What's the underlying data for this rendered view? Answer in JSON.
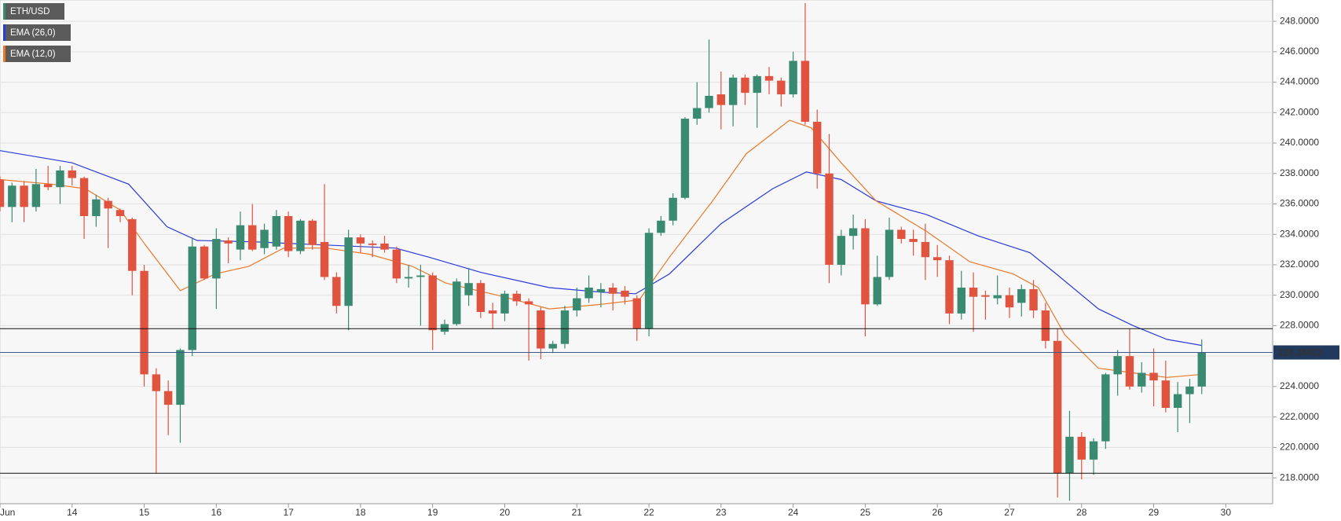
{
  "chart_data": {
    "type": "candlestick",
    "xlim": [
      0,
      105.9
    ],
    "xticks": [
      {
        "value": 0,
        "label": "Jun"
      },
      {
        "value": 6,
        "label": "14"
      },
      {
        "value": 12,
        "label": "15"
      },
      {
        "value": 18,
        "label": "16"
      },
      {
        "value": 24,
        "label": "17"
      },
      {
        "value": 30,
        "label": "18"
      },
      {
        "value": 36,
        "label": "19"
      },
      {
        "value": 42,
        "label": "20"
      },
      {
        "value": 48,
        "label": "21"
      },
      {
        "value": 54,
        "label": "22"
      },
      {
        "value": 60,
        "label": "23"
      },
      {
        "value": 66,
        "label": "24"
      },
      {
        "value": 72,
        "label": "25"
      },
      {
        "value": 78,
        "label": "26"
      },
      {
        "value": 84,
        "label": "27"
      },
      {
        "value": 90,
        "label": "28"
      },
      {
        "value": 96,
        "label": "29"
      },
      {
        "value": 102,
        "label": "30"
      }
    ],
    "ylim": [
      216.3,
      249.4
    ],
    "yticks": [
      {
        "value": 218,
        "label": "218.0000"
      },
      {
        "value": 220,
        "label": "220.0000"
      },
      {
        "value": 222,
        "label": "222.0000"
      },
      {
        "value": 224,
        "label": "224.0000"
      },
      {
        "value": 226,
        "label": "226.0000"
      },
      {
        "value": 228,
        "label": "228.0000"
      },
      {
        "value": 230,
        "label": "230.0000"
      },
      {
        "value": 232,
        "label": "232.0000"
      },
      {
        "value": 234,
        "label": "234.0000"
      },
      {
        "value": 236,
        "label": "236.0000"
      },
      {
        "value": 238,
        "label": "238.0000"
      },
      {
        "value": 240,
        "label": "240.0000"
      },
      {
        "value": 242,
        "label": "242.0000"
      },
      {
        "value": 244,
        "label": "244.0000"
      },
      {
        "value": 246,
        "label": "246.0000"
      },
      {
        "value": 248,
        "label": "248.0000"
      }
    ],
    "grid": true,
    "hlines": [
      227.8,
      218.3
    ],
    "last_price": 226.24022,
    "candles": {
      "name": "ETH/USD",
      "up_color": "#3a8a72",
      "down_color": "#e0533f",
      "x": [
        0,
        1,
        2,
        3,
        4,
        5,
        6,
        7,
        8,
        9,
        10,
        11,
        12,
        13,
        14,
        15,
        16,
        17,
        18,
        19,
        20,
        21,
        22,
        23,
        24,
        25,
        26,
        27,
        28,
        29,
        30,
        31,
        32,
        33,
        34,
        35,
        36,
        37,
        38,
        39,
        40,
        41,
        42,
        43,
        44,
        45,
        46,
        47,
        48,
        49,
        50,
        51,
        52,
        53,
        54,
        55,
        56,
        57,
        58,
        59,
        60,
        61,
        62,
        63,
        64,
        65,
        66,
        67,
        68,
        69,
        70,
        71,
        72,
        73,
        74,
        75,
        76,
        77,
        78,
        79,
        80,
        81,
        82,
        83,
        84,
        85,
        86,
        87,
        88,
        89,
        90,
        91,
        92,
        93,
        94,
        95,
        96,
        97,
        98,
        99,
        100
      ],
      "open": [
        237.6,
        235.8,
        237.2,
        235.8,
        237.3,
        237.1,
        238.2,
        237.7,
        235.2,
        236.2,
        235.6,
        235.0,
        231.6,
        224.8,
        223.7,
        222.8,
        226.4,
        233.2,
        231.1,
        233.6,
        233.0,
        234.6,
        233.1,
        233.2,
        235.2,
        232.9,
        234.9,
        233.5,
        231.2,
        229.3,
        233.8,
        233.4,
        233.4,
        233.0,
        231.1,
        231.2,
        231.3,
        227.6,
        228.1,
        230.0,
        230.8,
        229.0,
        228.8,
        230.1,
        229.6,
        229.0,
        226.5,
        226.8,
        229.0,
        229.8,
        230.2,
        230.5,
        230.3,
        229.8,
        227.8,
        234.1,
        234.9,
        236.4,
        241.6,
        242.3,
        243.2,
        242.5,
        244.3,
        243.3,
        244.4,
        244.1,
        243.2,
        245.4,
        241.4,
        238.0,
        232.0,
        233.9,
        234.4,
        229.4,
        231.2,
        234.3,
        233.7,
        233.5,
        232.5,
        232.3,
        228.8,
        230.5,
        230.0,
        229.8,
        230.0,
        229.5,
        230.4,
        229.0,
        227.0,
        218.3,
        220.7,
        219.2,
        220.4,
        224.8,
        226.0,
        224.0,
        224.9,
        224.4,
        222.6,
        223.5,
        224.0
      ],
      "high": [
        237.8,
        237.4,
        237.5,
        238.3,
        238.5,
        238.5,
        238.5,
        237.8,
        236.6,
        236.4,
        235.7,
        235.1,
        232.0,
        225.2,
        224.4,
        226.5,
        233.8,
        233.3,
        234.4,
        233.8,
        235.5,
        236.0,
        234.7,
        235.6,
        235.5,
        235.0,
        235.0,
        237.3,
        231.5,
        234.3,
        234.0,
        233.6,
        233.9,
        233.2,
        232.0,
        232.0,
        231.5,
        228.4,
        231.1,
        231.8,
        231.0,
        229.5,
        230.3,
        230.3,
        229.8,
        229.2,
        227.0,
        229.3,
        230.5,
        231.3,
        230.8,
        230.8,
        230.6,
        230.0,
        234.4,
        235.2,
        236.7,
        241.7,
        244.0,
        246.8,
        244.7,
        244.5,
        244.5,
        244.5,
        245.0,
        244.3,
        246.0,
        249.2,
        242.2,
        240.6,
        234.3,
        235.3,
        235.0,
        232.6,
        235.1,
        234.5,
        234.3,
        234.7,
        233.3,
        232.6,
        231.6,
        231.5,
        230.3,
        231.3,
        230.5,
        230.7,
        231.0,
        229.5,
        227.8,
        222.4,
        221.0,
        220.6,
        224.9,
        226.4,
        227.8,
        225.6,
        226.5,
        225.7,
        224.3,
        224.5,
        227.1
      ],
      "low": [
        235.5,
        234.8,
        234.8,
        235.5,
        236.9,
        236.0,
        237.2,
        233.7,
        234.5,
        233.1,
        234.8,
        230.0,
        224.0,
        218.3,
        220.8,
        220.3,
        226.0,
        231.0,
        229.1,
        232.1,
        232.3,
        232.9,
        232.7,
        233.0,
        232.5,
        232.7,
        233.0,
        231.0,
        228.8,
        227.7,
        232.8,
        232.5,
        232.8,
        230.8,
        230.5,
        228.0,
        226.4,
        227.4,
        228.0,
        229.3,
        228.5,
        227.8,
        228.3,
        229.3,
        225.7,
        225.8,
        226.2,
        226.5,
        228.6,
        229.5,
        229.2,
        229.0,
        229.4,
        227.0,
        227.3,
        233.9,
        234.6,
        236.3,
        241.2,
        242.0,
        240.9,
        241.1,
        242.5,
        241.0,
        243.2,
        242.4,
        243.0,
        241.2,
        237.0,
        230.8,
        231.3,
        233.0,
        227.3,
        229.3,
        231.0,
        233.4,
        232.6,
        231.0,
        231.2,
        228.1,
        228.4,
        227.6,
        228.4,
        229.4,
        228.5,
        228.6,
        228.5,
        226.5,
        216.7,
        216.5,
        217.9,
        218.2,
        219.9,
        223.4,
        223.8,
        223.6,
        222.7,
        222.3,
        221.0,
        221.6,
        223.5
      ],
      "close": [
        235.8,
        237.2,
        235.8,
        237.3,
        237.1,
        238.2,
        237.7,
        235.2,
        236.3,
        235.7,
        235.2,
        231.6,
        224.8,
        223.7,
        222.8,
        226.4,
        233.2,
        231.1,
        233.7,
        233.4,
        234.6,
        233.0,
        234.3,
        235.2,
        232.9,
        234.9,
        233.3,
        231.2,
        229.3,
        233.8,
        233.4,
        233.3,
        233.0,
        231.1,
        231.2,
        231.3,
        227.7,
        228.1,
        230.9,
        230.8,
        228.9,
        228.8,
        230.1,
        229.6,
        229.4,
        226.5,
        226.8,
        229.0,
        229.8,
        230.5,
        230.4,
        230.1,
        229.9,
        227.8,
        234.1,
        234.9,
        236.4,
        241.6,
        242.3,
        243.1,
        242.5,
        244.3,
        243.3,
        244.4,
        244.1,
        243.2,
        245.4,
        241.4,
        238.0,
        232.0,
        233.9,
        234.4,
        229.4,
        231.2,
        234.3,
        233.7,
        233.5,
        232.5,
        232.3,
        228.8,
        230.5,
        229.9,
        229.9,
        230.0,
        229.2,
        230.4,
        229.0,
        227.0,
        218.3,
        220.7,
        219.2,
        220.4,
        224.8,
        226.0,
        224.0,
        224.9,
        224.4,
        222.6,
        223.5,
        224.0,
        226.24022
      ]
    },
    "series": [
      {
        "name": "EMA (26,0)",
        "color": "#2a3bd6",
        "x": [
          0,
          6,
          10.7,
          13.9,
          16.4,
          21.4,
          27.1,
          32.9,
          35.7,
          40,
          45.7,
          50,
          52.9,
          55.7,
          60,
          64.3,
          67.1,
          70,
          72.9,
          77.1,
          81.4,
          85.7,
          87.9,
          91.4,
          94.3,
          97.1,
          100
        ],
        "values": [
          239.5,
          238.7,
          237.3,
          234.5,
          233.6,
          233.5,
          233.3,
          233.1,
          232.5,
          231.5,
          230.5,
          230.2,
          230.1,
          231.4,
          234.7,
          237.0,
          238.1,
          237.6,
          236.2,
          235.3,
          233.9,
          232.8,
          231.4,
          229.1,
          228.0,
          227.1,
          226.7
        ]
      },
      {
        "name": "EMA (12,0)",
        "color": "#e8792a",
        "x": [
          0,
          4.3,
          7.1,
          10,
          12.1,
          15,
          17.9,
          20.7,
          23.6,
          27.1,
          30.7,
          34.3,
          37.1,
          41.4,
          45.7,
          50,
          53.2,
          55.7,
          59.3,
          62.1,
          65.7,
          67.5,
          70,
          72.9,
          77.1,
          80.7,
          84.3,
          86.4,
          88.6,
          91.4,
          94.3,
          97.1,
          100
        ],
        "values": [
          237.6,
          237.3,
          237.0,
          235.6,
          233.3,
          230.3,
          231.4,
          231.9,
          233.1,
          233.1,
          232.7,
          231.9,
          230.8,
          230.0,
          229.1,
          229.4,
          229.7,
          232.5,
          236.2,
          239.3,
          241.5,
          241.0,
          238.7,
          236.2,
          234.2,
          232.2,
          231.4,
          230.5,
          227.4,
          225.2,
          224.9,
          224.6,
          224.8
        ]
      }
    ]
  }
}
